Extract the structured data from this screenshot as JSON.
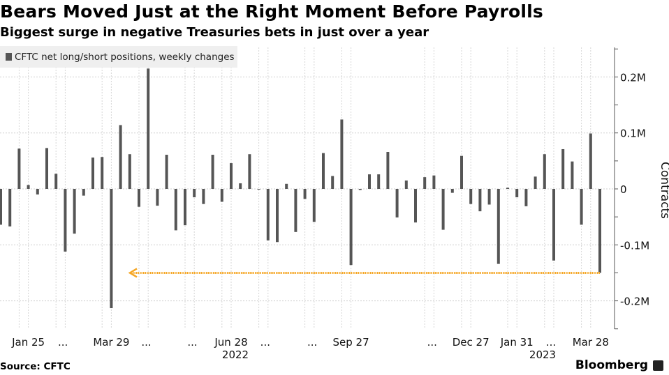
{
  "header": {
    "title": "Bears Moved Just at the Right Moment Before Payrolls",
    "subtitle": "Biggest surge in negative Treasuries bets in just over a year"
  },
  "footer": {
    "source": "Source: CFTC",
    "brand": "Bloomberg"
  },
  "chart_data": {
    "type": "bar",
    "title": "Bears Moved Just at the Right Moment Before Payrolls",
    "subtitle": "Biggest surge in negative Treasuries bets in just over a year",
    "ylabel": "Contracts",
    "ylim": [
      -0.25,
      0.25
    ],
    "y_unit": "M",
    "y_ticks": [
      {
        "v": 0.2,
        "label": "0.2M"
      },
      {
        "v": 0.1,
        "label": "0.1M"
      },
      {
        "v": 0,
        "label": "0"
      },
      {
        "v": -0.1,
        "label": "-0.1M"
      },
      {
        "v": -0.2,
        "label": "-0.2M"
      }
    ],
    "x_tick_labels": [
      "Jan 25",
      "...",
      "Mar 29",
      "...",
      "...",
      "Jun 28",
      "...",
      "...",
      "Sep 27",
      "...",
      "Dec 27",
      "Jan 31",
      "...",
      "Mar 28"
    ],
    "year_labels": [
      "2022",
      "2023"
    ],
    "grid": true,
    "legend_position": "top-left",
    "bar_color": "#555555",
    "annotation_color": "#f5a623",
    "annotation": "dotted arrow at -0.15M marking latest change",
    "series": [
      {
        "name": "CFTC net long/short positions, weekly changes",
        "x": [
          "2022-01-04",
          "2022-01-11",
          "2022-01-18",
          "2022-01-25",
          "2022-02-01",
          "2022-02-08",
          "2022-02-15",
          "2022-02-22",
          "2022-03-01",
          "2022-03-08",
          "2022-03-15",
          "2022-03-22",
          "2022-03-29",
          "2022-04-05",
          "2022-04-12",
          "2022-04-19",
          "2022-04-26",
          "2022-05-03",
          "2022-05-10",
          "2022-05-17",
          "2022-05-24",
          "2022-05-31",
          "2022-06-07",
          "2022-06-14",
          "2022-06-21",
          "2022-06-28",
          "2022-07-05",
          "2022-07-12",
          "2022-07-19",
          "2022-07-26",
          "2022-08-02",
          "2022-08-09",
          "2022-08-16",
          "2022-08-23",
          "2022-08-30",
          "2022-09-06",
          "2022-09-13",
          "2022-09-20",
          "2022-09-27",
          "2022-10-04",
          "2022-10-11",
          "2022-10-18",
          "2022-10-25",
          "2022-11-01",
          "2022-11-08",
          "2022-11-15",
          "2022-11-22",
          "2022-11-29",
          "2022-12-06",
          "2022-12-13",
          "2022-12-20",
          "2022-12-27",
          "2023-01-03",
          "2023-01-10",
          "2023-01-17",
          "2023-01-24",
          "2023-01-31",
          "2023-02-07",
          "2023-02-14",
          "2023-02-21",
          "2023-02-28",
          "2023-03-07",
          "2023-03-14",
          "2023-03-21",
          "2023-03-28",
          "2023-04-04"
        ],
        "values": [
          -0.064,
          -0.067,
          0.072,
          0.007,
          -0.01,
          0.073,
          0.027,
          -0.112,
          -0.08,
          -0.012,
          0.056,
          0.057,
          -0.213,
          0.114,
          0.062,
          -0.032,
          0.215,
          -0.03,
          0.061,
          -0.074,
          -0.065,
          -0.015,
          -0.027,
          0.061,
          -0.023,
          0.046,
          0.01,
          0.062,
          -0.001,
          -0.092,
          -0.095,
          0.009,
          -0.077,
          -0.018,
          -0.059,
          0.064,
          0.023,
          0.124,
          -0.136,
          -0.002,
          0.026,
          0.026,
          0.066,
          -0.051,
          0.015,
          -0.06,
          0.021,
          0.024,
          -0.073,
          -0.007,
          0.059,
          -0.027,
          -0.04,
          -0.028,
          -0.134,
          0.002,
          -0.015,
          -0.031,
          0.022,
          0.062,
          -0.128,
          0.071,
          0.049,
          -0.064,
          0.099,
          -0.15
        ]
      }
    ]
  }
}
